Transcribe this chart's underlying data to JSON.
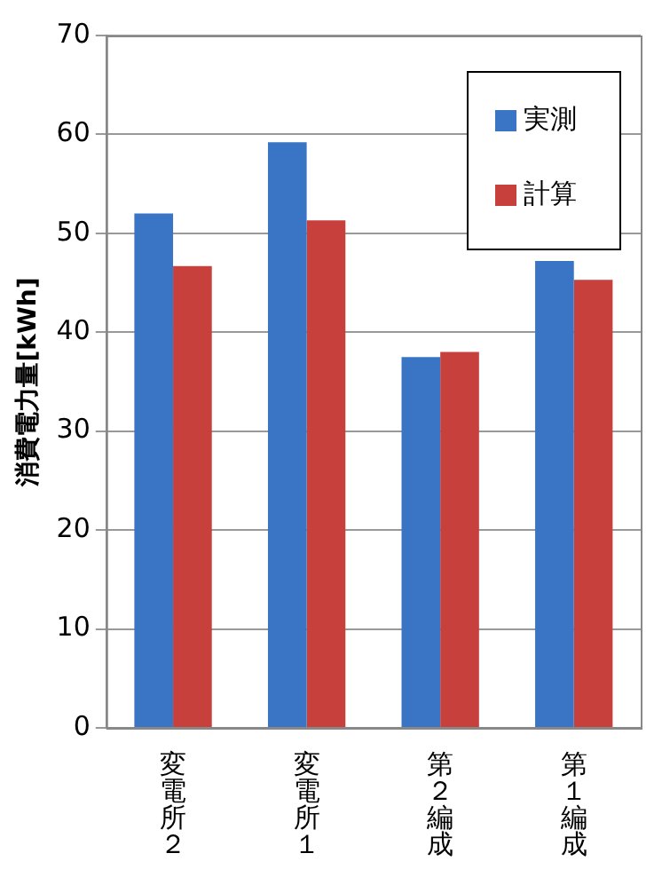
{
  "chart_data": {
    "type": "bar",
    "ylabel": "消費電力量[kWh]",
    "categories": [
      "変電所２",
      "変電所１",
      "第２編成",
      "第１編成"
    ],
    "series": [
      {
        "name": "実測",
        "color": "#3a74c4",
        "values": [
          52,
          59.2,
          37.5,
          47.2
        ]
      },
      {
        "name": "計算",
        "color": "#c8403c",
        "values": [
          46.7,
          51.3,
          38,
          45.3
        ]
      }
    ],
    "ylim": [
      0,
      70
    ],
    "yticks": [
      0,
      10,
      20,
      30,
      40,
      50,
      60,
      70
    ],
    "grid": "y",
    "legend": "top right"
  }
}
